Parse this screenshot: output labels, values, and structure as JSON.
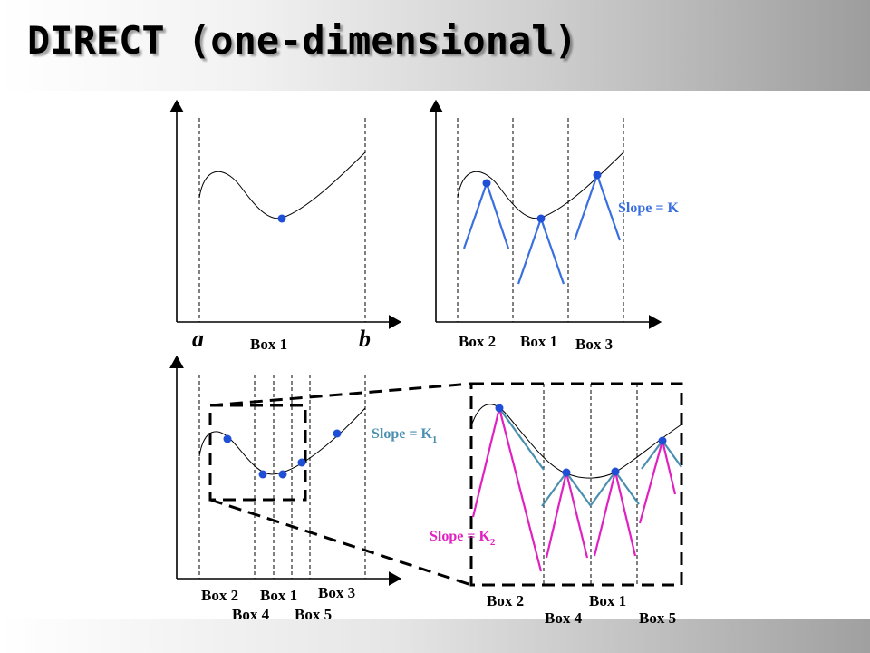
{
  "title": "DIRECT (one-dimensional)",
  "panel1": {
    "a_label": "a",
    "b_label": "b",
    "box1": "Box 1"
  },
  "panel2": {
    "box2": "Box 2",
    "box1": "Box 1",
    "box3": "Box 3",
    "slope": "Slope = K"
  },
  "panel3": {
    "box2": "Box 2",
    "box1": "Box 1",
    "box3": "Box 3",
    "box4": "Box 4",
    "box5": "Box 5"
  },
  "panel4": {
    "box2": "Box 2",
    "box1": "Box 1",
    "box4": "Box 4",
    "box5": "Box 5",
    "slope_k1": "Slope = K",
    "slope_k1_sub": "1",
    "slope_k2": "Slope = K",
    "slope_k2_sub": "2"
  },
  "colors": {
    "points": "#1f4fd6",
    "slope_k": "#3a6fe0",
    "slope_k1": "#4a8fb0",
    "slope_k2": "#e020c0"
  }
}
